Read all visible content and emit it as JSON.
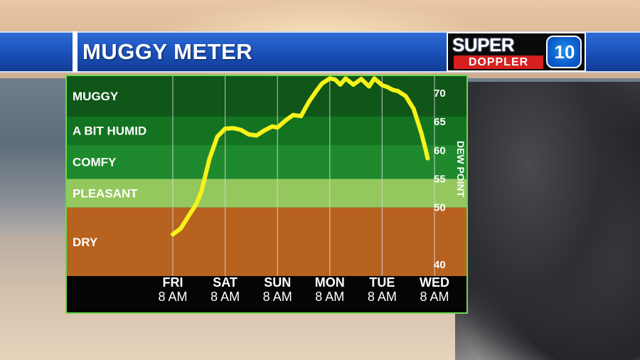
{
  "header": {
    "title": "MUGGY METER"
  },
  "logo": {
    "word_top": "SUPER",
    "word_bottom": "DOPPLER",
    "number": "10"
  },
  "chart_data": {
    "type": "line",
    "title": "MUGGY METER",
    "xlabel": "",
    "ylabel": "DEW POINT",
    "ylim": [
      38,
      73
    ],
    "yticks": [
      40,
      50,
      55,
      60,
      65,
      70
    ],
    "categories": [
      {
        "day": "FRI",
        "time": "8 AM"
      },
      {
        "day": "SAT",
        "time": "8 AM"
      },
      {
        "day": "SUN",
        "time": "8 AM"
      },
      {
        "day": "MON",
        "time": "8 AM"
      },
      {
        "day": "TUE",
        "time": "8 AM"
      },
      {
        "day": "WED",
        "time": "8 AM"
      }
    ],
    "zones": [
      {
        "label": "DRY",
        "from": 38,
        "to": 50,
        "color": "#b8621f"
      },
      {
        "label": "PLEASANT",
        "from": 50,
        "to": 55,
        "color": "#94c85e"
      },
      {
        "label": "COMFY",
        "from": 55,
        "to": 61,
        "color": "#1f8a2d"
      },
      {
        "label": "A BIT HUMID",
        "from": 61,
        "to": 66,
        "color": "#147321"
      },
      {
        "label": "MUGGY",
        "from": 66,
        "to": 73,
        "color": "#0f5618"
      }
    ],
    "line_color": "#f7f21a",
    "series": [
      {
        "x": [
          0,
          0.15,
          0.3,
          0.45,
          0.55,
          0.7,
          0.85,
          1.0,
          1.15,
          1.3,
          1.45,
          1.6,
          1.75,
          1.9,
          2.0,
          2.15,
          2.3,
          2.45,
          2.6,
          2.75,
          2.85,
          3.0,
          3.1,
          3.2,
          3.3,
          3.45,
          3.6,
          3.75,
          3.85,
          4.0,
          4.1,
          4.2,
          4.3,
          4.45,
          4.6,
          4.75,
          4.82,
          4.87
        ],
        "values": [
          45.3,
          46.3,
          48.5,
          50.6,
          52.9,
          58.5,
          62.4,
          63.8,
          63.9,
          63.6,
          62.8,
          62.6,
          63.5,
          64.2,
          64.0,
          65.2,
          66.2,
          66.0,
          68.5,
          70.5,
          71.7,
          72.6,
          72.4,
          71.5,
          72.6,
          71.5,
          72.5,
          71.2,
          72.6,
          71.4,
          71.1,
          70.6,
          70.4,
          69.5,
          67.3,
          63.0,
          60.5,
          58.6
        ]
      }
    ]
  }
}
